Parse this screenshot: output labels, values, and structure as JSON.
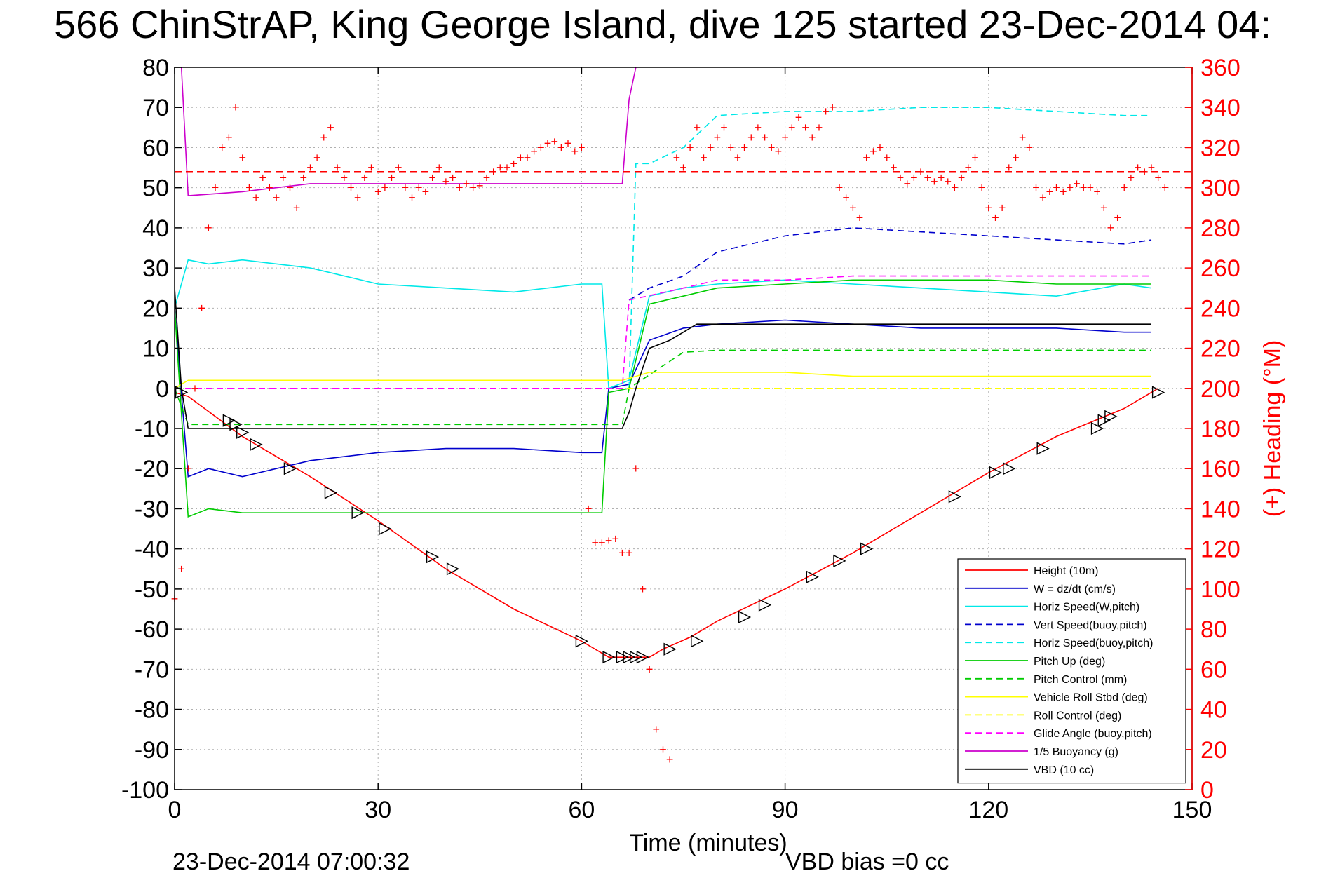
{
  "chart_data": {
    "type": "line",
    "title": "566 ChinStrAP, King George Island, dive 125 started 23-Dec-2014 04:",
    "xlabel": "Time (minutes)",
    "ylabel_right": "(+) Heading (°M)",
    "xlim": [
      0,
      150
    ],
    "ylim_left": [
      -100,
      80
    ],
    "ylim_right": [
      0,
      360
    ],
    "x_ticks": [
      0,
      30,
      60,
      90,
      120,
      150
    ],
    "y_left_ticks": [
      80,
      70,
      60,
      50,
      40,
      30,
      20,
      10,
      0,
      -10,
      -20,
      -30,
      -40,
      -50,
      -60,
      -70,
      -80,
      -90,
      -100
    ],
    "y_right_ticks": [
      360,
      340,
      320,
      300,
      280,
      260,
      240,
      220,
      200,
      180,
      160,
      140,
      120,
      100,
      80,
      60,
      40,
      20,
      0
    ],
    "grid": true,
    "legend_placement": "bottom-right",
    "colors": {
      "height": "#ff0000",
      "w": "#0000cc",
      "horiz_speed": "#00e8e8",
      "pitch_up": "#00cc00",
      "roll": "#ffff00",
      "glide": "#ff00ff",
      "buoyancy": "#cc00cc",
      "vbd": "#000000",
      "heading": "#ff0000"
    },
    "series": [
      {
        "name": "Height (10m)",
        "style": "solid",
        "color": "#ff0000",
        "x": [
          0,
          2,
          10,
          20,
          30,
          40,
          50,
          60,
          64,
          66,
          70,
          72,
          76,
          80,
          90,
          100,
          110,
          120,
          130,
          140,
          145
        ],
        "y": [
          -1,
          -2,
          -12,
          -22,
          -33,
          -45,
          -55,
          -63,
          -67,
          -67,
          -67,
          -65,
          -62,
          -58,
          -50,
          -41,
          -31,
          -21,
          -12,
          -5,
          0
        ]
      },
      {
        "name": "W = dz/dt (cm/s)",
        "style": "solid",
        "color": "#0000cc",
        "x": [
          0,
          2,
          5,
          10,
          20,
          30,
          40,
          50,
          60,
          63,
          64,
          67,
          70,
          75,
          80,
          90,
          100,
          110,
          120,
          130,
          140,
          144
        ],
        "y": [
          20,
          -22,
          -20,
          -22,
          -18,
          -16,
          -15,
          -15,
          -16,
          -16,
          0,
          1,
          12,
          15,
          16,
          17,
          16,
          15,
          15,
          15,
          14,
          14
        ]
      },
      {
        "name": "Horiz Speed(W,pitch)",
        "style": "solid",
        "color": "#00e8e8",
        "x": [
          0,
          2,
          5,
          10,
          20,
          30,
          40,
          50,
          60,
          63,
          64,
          67,
          70,
          75,
          80,
          90,
          100,
          110,
          120,
          130,
          140,
          144
        ],
        "y": [
          20,
          32,
          31,
          32,
          30,
          26,
          25,
          24,
          26,
          26,
          0,
          2,
          23,
          25,
          26,
          27,
          26,
          25,
          24,
          23,
          26,
          25
        ]
      },
      {
        "name": "Vert Speed(buoy,pitch)",
        "style": "dashed",
        "color": "#0000cc",
        "x": [
          67,
          70,
          75,
          80,
          90,
          100,
          110,
          120,
          130,
          140,
          144
        ],
        "y": [
          22,
          25,
          28,
          34,
          38,
          40,
          39,
          38,
          37,
          36,
          37
        ]
      },
      {
        "name": "Horiz Speed(buoy,pitch)",
        "style": "dashed",
        "color": "#00e8e8",
        "x": [
          67,
          68,
          70,
          75,
          80,
          90,
          100,
          110,
          120,
          130,
          140,
          144
        ],
        "y": [
          0,
          56,
          56,
          60,
          68,
          69,
          69,
          70,
          70,
          69,
          68,
          68
        ]
      },
      {
        "name": "Pitch Up (deg)",
        "style": "solid",
        "color": "#00cc00",
        "x": [
          0,
          2,
          5,
          10,
          20,
          30,
          40,
          50,
          60,
          63,
          64,
          67,
          70,
          75,
          80,
          90,
          100,
          110,
          120,
          130,
          140,
          144
        ],
        "y": [
          20,
          -32,
          -30,
          -31,
          -31,
          -31,
          -31,
          -31,
          -31,
          -31,
          -1,
          0,
          21,
          23,
          25,
          26,
          27,
          27,
          27,
          26,
          26,
          26
        ]
      },
      {
        "name": "Pitch Control (mm)",
        "style": "dashed",
        "color": "#00cc00",
        "x": [
          0,
          2,
          66,
          67,
          75,
          80,
          144
        ],
        "y": [
          0,
          -9,
          -9,
          0,
          9,
          9.5,
          9.5
        ]
      },
      {
        "name": "Vehicle Roll Stbd (deg)",
        "style": "solid",
        "color": "#ffff00",
        "x": [
          0,
          2,
          10,
          20,
          30,
          40,
          50,
          60,
          66,
          70,
          80,
          90,
          100,
          110,
          120,
          130,
          140,
          144
        ],
        "y": [
          0,
          2,
          2,
          2,
          2,
          2,
          2,
          2,
          2,
          4,
          4,
          4,
          3,
          3,
          3,
          3,
          3,
          3
        ]
      },
      {
        "name": "Roll Control (deg)",
        "style": "dashed",
        "color": "#ffff00",
        "x": [
          0,
          2,
          66,
          67,
          144
        ],
        "y": [
          0,
          0,
          0,
          0,
          0
        ]
      },
      {
        "name": "Glide Angle (buoy,pitch)",
        "style": "dashed",
        "color": "#ff00ff",
        "x": [
          0,
          66,
          67,
          75,
          80,
          90,
          100,
          110,
          120,
          130,
          140,
          144
        ],
        "y": [
          0,
          0,
          22,
          25,
          27,
          27,
          28,
          28,
          28,
          28,
          28,
          28
        ]
      },
      {
        "name": "1/5 Buoyancy (g)",
        "style": "solid",
        "color": "#cc00cc",
        "x": [
          1,
          2,
          10,
          20,
          30,
          40,
          50,
          60,
          66,
          67,
          68
        ],
        "y": [
          80,
          48,
          49,
          51,
          51,
          51,
          51,
          51,
          51,
          72,
          80
        ]
      },
      {
        "name": "VBD (10 cc)",
        "style": "solid",
        "color": "#000000",
        "x": [
          0,
          1,
          2,
          66,
          67,
          68,
          70,
          73,
          75,
          77,
          144
        ],
        "y": [
          25,
          0,
          -10,
          -10,
          -6,
          0,
          10,
          12,
          14,
          16,
          16
        ]
      }
    ],
    "heading_series": {
      "name": "(+) Heading (°M)",
      "axis": "right",
      "marker": "+",
      "x": [
        0,
        1,
        2,
        3,
        4,
        5,
        6,
        7,
        8,
        9,
        10,
        11,
        12,
        13,
        14,
        15,
        16,
        17,
        18,
        19,
        20,
        21,
        22,
        23,
        24,
        25,
        26,
        27,
        28,
        29,
        30,
        31,
        32,
        33,
        34,
        35,
        36,
        37,
        38,
        39,
        40,
        41,
        42,
        43,
        44,
        45,
        46,
        47,
        48,
        49,
        50,
        51,
        52,
        53,
        54,
        55,
        56,
        57,
        58,
        59,
        60,
        61,
        62,
        63,
        64,
        65,
        66,
        67,
        68,
        69,
        70,
        71,
        72,
        73,
        74,
        75,
        76,
        77,
        78,
        79,
        80,
        81,
        82,
        83,
        84,
        85,
        86,
        87,
        88,
        89,
        90,
        91,
        92,
        93,
        94,
        95,
        96,
        97,
        98,
        99,
        100,
        101,
        102,
        103,
        104,
        105,
        106,
        107,
        108,
        109,
        110,
        111,
        112,
        113,
        114,
        115,
        116,
        117,
        118,
        119,
        120,
        121,
        122,
        123,
        124,
        125,
        126,
        127,
        128,
        129,
        130,
        131,
        132,
        133,
        134,
        135,
        136,
        137,
        138,
        139,
        140,
        141,
        142,
        143,
        144,
        145,
        146
      ],
      "y": [
        95,
        110,
        160,
        200,
        240,
        280,
        300,
        320,
        325,
        340,
        315,
        300,
        295,
        305,
        300,
        295,
        305,
        300,
        290,
        305,
        310,
        315,
        325,
        330,
        310,
        305,
        300,
        295,
        305,
        310,
        298,
        300,
        305,
        310,
        300,
        295,
        300,
        298,
        305,
        310,
        303,
        305,
        300,
        302,
        300,
        301,
        305,
        308,
        310,
        310,
        312,
        315,
        315,
        318,
        320,
        322,
        323,
        320,
        322,
        318,
        320,
        140,
        123,
        123,
        124,
        125,
        118,
        118,
        160,
        100,
        60,
        30,
        20,
        15,
        315,
        310,
        320,
        330,
        315,
        320,
        325,
        330,
        320,
        315,
        320,
        325,
        330,
        325,
        320,
        318,
        325,
        330,
        335,
        330,
        325,
        330,
        338,
        340,
        300,
        295,
        290,
        285,
        315,
        318,
        320,
        315,
        310,
        305,
        302,
        305,
        308,
        305,
        303,
        305,
        303,
        300,
        305,
        310,
        315,
        300,
        290,
        285,
        290,
        310,
        315,
        325,
        320,
        300,
        295,
        298,
        300,
        298,
        300,
        302,
        300,
        300,
        298,
        290,
        280,
        285,
        300,
        305,
        310,
        308,
        310,
        305,
        300
      ]
    },
    "reference_line": {
      "name": "mean heading",
      "axis": "right",
      "y": 308,
      "style": "dashed",
      "color": "#ff0000"
    },
    "triangle_markers": {
      "x": [
        1,
        8,
        9,
        10,
        12,
        17,
        23,
        27,
        31,
        38,
        41,
        60,
        64,
        66,
        67,
        68,
        69,
        73,
        77,
        84,
        87,
        94,
        98,
        102,
        115,
        121,
        123,
        128,
        136,
        137,
        138,
        145
      ],
      "y": [
        -1,
        -8,
        -9,
        -11,
        -14,
        -20,
        -26,
        -31,
        -35,
        -42,
        -45,
        -63,
        -67,
        -67,
        -67,
        -67,
        -67,
        -65,
        -63,
        -57,
        -54,
        -47,
        -43,
        -40,
        -27,
        -21,
        -20,
        -15,
        -10,
        -8,
        -7,
        -1
      ]
    },
    "legend": [
      {
        "label": "Height (10m)",
        "color": "#ff0000",
        "style": "solid"
      },
      {
        "label": "W = dz/dt (cm/s)",
        "color": "#0000cc",
        "style": "solid"
      },
      {
        "label": "Horiz Speed(W,pitch)",
        "color": "#00e8e8",
        "style": "solid"
      },
      {
        "label": "Vert Speed(buoy,pitch)",
        "color": "#0000cc",
        "style": "dashed"
      },
      {
        "label": "Horiz Speed(buoy,pitch)",
        "color": "#00e8e8",
        "style": "dashed"
      },
      {
        "label": "Pitch Up (deg)",
        "color": "#00cc00",
        "style": "solid"
      },
      {
        "label": "Pitch Control (mm)",
        "color": "#00cc00",
        "style": "dashed"
      },
      {
        "label": "Vehicle Roll Stbd (deg)",
        "color": "#ffff00",
        "style": "solid"
      },
      {
        "label": "Roll Control (deg)",
        "color": "#ffff00",
        "style": "dashed"
      },
      {
        "label": "Glide Angle (buoy,pitch)",
        "color": "#ff00ff",
        "style": "dashed"
      },
      {
        "label": "1/5 Buoyancy (g)",
        "color": "#cc00cc",
        "style": "solid"
      },
      {
        "label": "VBD (10 cc)",
        "color": "#000000",
        "style": "solid"
      }
    ],
    "footer_timestamp": "23-Dec-2014 07:00:32",
    "footer_vbd_bias": "VBD bias =0 cc"
  }
}
